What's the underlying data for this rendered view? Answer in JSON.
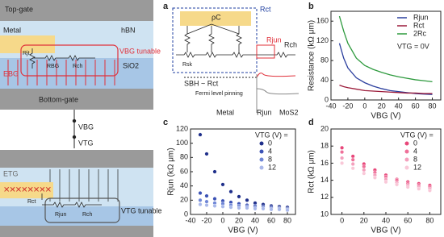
{
  "schematic": {
    "top": {
      "top_gate": "Top-gate",
      "hbn": "hBN",
      "metal": "Metal",
      "r_jt": "Rjt",
      "r_bg": "RBG",
      "r_ch": "Rch",
      "tunable": "VBG tunable",
      "sio2": "SiO2",
      "e_bg": "EBG",
      "bottom_gate": "Bottom-gate"
    },
    "terminals": {
      "v_bg": "VBG",
      "v_tg": "VTG"
    },
    "bottom": {
      "e_tg": "ETG",
      "r_ct": "Rct",
      "r_jun": "Rjun",
      "r_ch": "Rch",
      "tunable": "VTG tunable"
    }
  },
  "panel_a": {
    "label": "a",
    "rho_c": "ρC",
    "r_ct": "Rct",
    "r_jun": "Rjun",
    "r_ch": "Rch",
    "r_sk": "Rsk",
    "sbh": "SBH ~ Rct",
    "pinning": "Fermi level pinning",
    "metal": "Metal",
    "r_jun_bottom": "Rjun",
    "mos2": "MoS2"
  },
  "chart_data": [
    {
      "type": "line",
      "panel_label": "b",
      "xlabel": "VBG (V)",
      "ylabel": "Resistance (kΩ μm)",
      "annotation": "VTG = 0V",
      "legend": "upper right",
      "x": [
        -30,
        -25,
        -20,
        -10,
        0,
        10,
        20,
        30,
        40,
        50,
        60,
        70,
        80
      ],
      "series": [
        {
          "name": "Rjun",
          "color": "#2b3f9e",
          "values": [
            115,
            85,
            65,
            45,
            35,
            28,
            23,
            19,
            17,
            15,
            13,
            12,
            11
          ]
        },
        {
          "name": "Rct",
          "color": "#9b1b3a",
          "values": [
            30,
            27,
            25,
            22,
            19,
            18,
            17,
            16,
            15,
            14,
            14,
            13,
            13
          ]
        },
        {
          "name": "2Rc",
          "color": "#2e9a3e",
          "values": [
            170,
            140,
            115,
            85,
            70,
            62,
            56,
            51,
            47,
            44,
            41,
            39,
            37
          ]
        }
      ],
      "xlim": [
        -40,
        90
      ],
      "ylim": [
        0,
        180
      ],
      "xticks": [
        -40,
        -20,
        0,
        20,
        40,
        60,
        80
      ],
      "yticks": [
        0,
        40,
        80,
        120,
        160
      ]
    },
    {
      "type": "scatter",
      "panel_label": "c",
      "xlabel": "VBG (V)",
      "ylabel": "Rjun (kΩ μm)",
      "legend_title": "VTG (V) =",
      "legend": "upper right",
      "x": [
        -28,
        -20,
        -10,
        0,
        10,
        20,
        30,
        40,
        50,
        60,
        70,
        80
      ],
      "series": [
        {
          "name": "0",
          "color": "#1f2f8a",
          "values": [
            112,
            85,
            60,
            42,
            32,
            25,
            20,
            16,
            14,
            12,
            11,
            10
          ]
        },
        {
          "name": "4",
          "color": "#3b52b5",
          "values": [
            30,
            26,
            22,
            19,
            17,
            15,
            13,
            12,
            11,
            10,
            9,
            8
          ]
        },
        {
          "name": "8",
          "color": "#6f86d6",
          "values": [
            20,
            18,
            16,
            15,
            13,
            12,
            11,
            10,
            9,
            8,
            8,
            7
          ]
        },
        {
          "name": "12",
          "color": "#a9b8ea",
          "values": [
            14,
            13,
            12,
            11,
            10,
            9,
            9,
            8,
            8,
            7,
            7,
            6
          ]
        }
      ],
      "xlim": [
        -40,
        90
      ],
      "ylim": [
        0,
        120
      ],
      "xticks": [
        -40,
        -20,
        0,
        20,
        40,
        60,
        80
      ],
      "yticks": [
        0,
        20,
        40,
        60,
        80,
        100,
        120
      ]
    },
    {
      "type": "scatter",
      "panel_label": "d",
      "xlabel": "VBG (V)",
      "ylabel": "Rct (kΩ μm)",
      "legend_title": "VTG (V) =",
      "legend": "upper right",
      "x": [
        0,
        10,
        20,
        30,
        40,
        50,
        60,
        70,
        80
      ],
      "series": [
        {
          "name": "0",
          "color": "#e8477a",
          "values": [
            17.8,
            16.8,
            15.9,
            15.2,
            14.6,
            14.1,
            13.8,
            13.6,
            13.4
          ]
        },
        {
          "name": "4",
          "color": "#ef7099",
          "values": [
            17.3,
            16.4,
            15.6,
            14.9,
            14.4,
            14.0,
            13.6,
            13.4,
            13.2
          ]
        },
        {
          "name": "8",
          "color": "#f4a0bd",
          "values": [
            16.6,
            15.9,
            15.2,
            14.6,
            14.1,
            13.7,
            13.4,
            13.2,
            13.0
          ]
        },
        {
          "name": "12",
          "color": "#f9c8d8",
          "values": [
            16.0,
            15.4,
            14.8,
            14.3,
            13.8,
            13.5,
            13.2,
            13.0,
            12.8
          ]
        }
      ],
      "xlim": [
        -10,
        90
      ],
      "ylim": [
        10,
        20
      ],
      "xticks": [
        0,
        20,
        40,
        60,
        80
      ],
      "yticks": [
        10,
        12,
        14,
        16,
        18,
        20
      ]
    }
  ]
}
